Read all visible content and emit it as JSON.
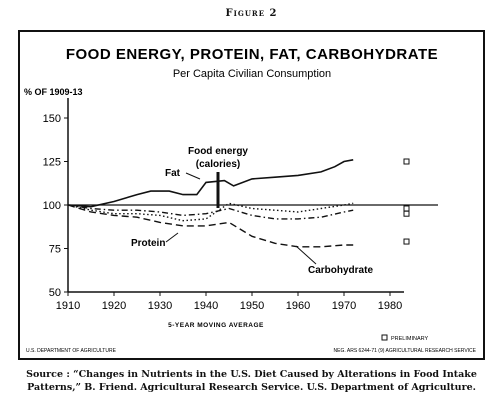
{
  "figure_label": "Figure 2",
  "caption": "Source : “Changes in Nutrients in the U.S. Diet Caused by Alterations in Food Intake Patterns,” B. Friend. Agricultural Research Service. U.S. Department of Agriculture.",
  "chart_data": {
    "type": "line",
    "title": "FOOD ENERGY, PROTEIN, FAT, CARBOHYDRATE",
    "subtitle": "Per Capita Civilian Consumption",
    "ylabel": "% OF 1909-13",
    "xlabel": "5-YEAR MOVING AVERAGE",
    "xlim": [
      1910,
      1980
    ],
    "ylim": [
      50,
      150
    ],
    "x_ticks": [
      1910,
      1920,
      1930,
      1940,
      1950,
      1960,
      1970,
      1980
    ],
    "y_ticks": [
      50,
      75,
      100,
      125,
      150
    ],
    "grid": false,
    "legend": "bottom-right",
    "legend_label": "PRELIMINARY",
    "footer_left": "U.S. DEPARTMENT OF AGRICULTURE",
    "footer_right": "NEG. ARS 6244-71 (9) AGRICULTURAL RESEARCH SERVICE",
    "series": [
      {
        "name": "Fat",
        "style": "solid",
        "x": [
          1910,
          1915,
          1920,
          1925,
          1928,
          1932,
          1935,
          1938,
          1940,
          1944,
          1946,
          1950,
          1955,
          1960,
          1965,
          1968,
          1970,
          1972
        ],
        "y": [
          100,
          99,
          102,
          106,
          108,
          108,
          106,
          106,
          113,
          114,
          111,
          115,
          116,
          117,
          119,
          122,
          125,
          126
        ],
        "preliminary": 125
      },
      {
        "name": "Food energy (calories)",
        "style": "dash-dot",
        "x": [
          1910,
          1915,
          1920,
          1925,
          1930,
          1935,
          1940,
          1945,
          1950,
          1955,
          1960,
          1965,
          1970,
          1972
        ],
        "y": [
          100,
          98,
          97,
          97,
          96,
          94,
          95,
          98,
          94,
          92,
          92,
          93,
          96,
          97
        ],
        "preliminary": 98
      },
      {
        "name": "Protein",
        "style": "dotted",
        "x": [
          1910,
          1915,
          1920,
          1925,
          1930,
          1935,
          1940,
          1945,
          1950,
          1955,
          1960,
          1965,
          1970,
          1972
        ],
        "y": [
          100,
          97,
          95,
          95,
          94,
          91,
          92,
          101,
          98,
          97,
          96,
          98,
          100,
          101
        ],
        "preliminary": 95
      },
      {
        "name": "Carbohydrate",
        "style": "dashed",
        "x": [
          1910,
          1915,
          1920,
          1925,
          1930,
          1935,
          1940,
          1945,
          1950,
          1955,
          1960,
          1965,
          1970,
          1972
        ],
        "y": [
          100,
          96,
          94,
          93,
          90,
          88,
          88,
          90,
          82,
          78,
          76,
          76,
          77,
          77
        ],
        "preliminary": 79
      }
    ]
  }
}
